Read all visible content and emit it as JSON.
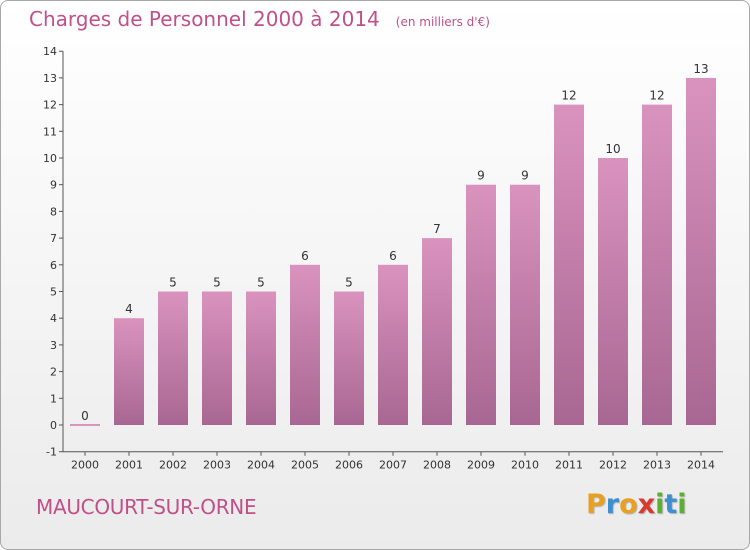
{
  "header": {
    "title": "Charges de Personnel 2000 à 2014",
    "subtitle": "(en milliers d'€)"
  },
  "footer": {
    "commune": "MAUCOURT-SUR-ORNE",
    "logo": [
      "P",
      "r",
      "o",
      "x",
      "i",
      "t",
      "i"
    ],
    "logo_colors": [
      "#e8a020",
      "#3c8fd0",
      "#e8a020",
      "#d83a30",
      "#5bb030",
      "#3c8fd0",
      "#5bb030"
    ]
  },
  "chart_data": {
    "type": "bar",
    "categories": [
      "2000",
      "2001",
      "2002",
      "2003",
      "2004",
      "2005",
      "2006",
      "2007",
      "2008",
      "2009",
      "2010",
      "2011",
      "2012",
      "2013",
      "2014"
    ],
    "values": [
      0,
      4,
      5,
      5,
      5,
      6,
      5,
      6,
      7,
      9,
      9,
      12,
      10,
      12,
      13
    ],
    "data_labels": [
      "0",
      "4",
      "5",
      "5",
      "5",
      "6",
      "5",
      "6",
      "7",
      "9",
      "9",
      "12",
      "10",
      "12",
      "13"
    ],
    "y_ticks": [
      -1,
      0,
      1,
      2,
      3,
      4,
      5,
      6,
      7,
      8,
      9,
      10,
      11,
      12,
      13,
      14
    ],
    "ylim": [
      -1,
      14
    ],
    "xlabel": "",
    "ylabel": "",
    "grid": false,
    "legend": "none",
    "bar_color": "#d993be",
    "bar_color_dark": "#a86792"
  }
}
